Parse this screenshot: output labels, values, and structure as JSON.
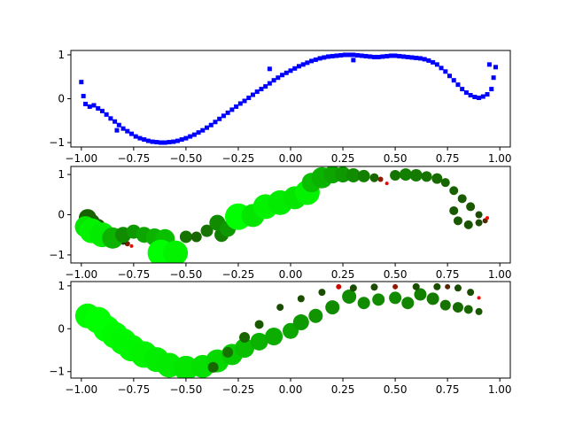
{
  "figure": {
    "background": "#ffffff"
  },
  "chart_data": [
    {
      "type": "scatter",
      "title": "",
      "xlabel": "",
      "ylabel": "",
      "xlim": [
        -1.05,
        1.05
      ],
      "ylim": [
        -1.1,
        1.1
      ],
      "xticks": [
        -1.0,
        -0.75,
        -0.5,
        -0.25,
        0.0,
        0.25,
        0.5,
        0.75,
        1.0
      ],
      "xtick_labels": [
        "−1.00",
        "−0.75",
        "−0.50",
        "−0.25",
        "0.00",
        "0.25",
        "0.50",
        "0.75",
        "1.00"
      ],
      "yticks": [
        -1,
        0,
        1
      ],
      "ytick_labels": [
        "−1",
        "0",
        "1"
      ],
      "marker": "square",
      "color": "#0000ff",
      "grid": false,
      "legend": "none",
      "series": [
        {
          "x": [
            -1.0,
            -0.99,
            -0.98,
            -0.96,
            -0.94,
            -0.92,
            -0.9,
            -0.88,
            -0.86,
            -0.84,
            -0.82,
            -0.8,
            -0.78,
            -0.76,
            -0.74,
            -0.72,
            -0.7,
            -0.68,
            -0.66,
            -0.64,
            -0.62,
            -0.6,
            -0.58,
            -0.56,
            -0.54,
            -0.52,
            -0.5,
            -0.48,
            -0.46,
            -0.44,
            -0.42,
            -0.4,
            -0.38,
            -0.36,
            -0.34,
            -0.32,
            -0.3,
            -0.28,
            -0.26,
            -0.24,
            -0.22,
            -0.2,
            -0.18,
            -0.16,
            -0.14,
            -0.12,
            -0.1,
            -0.08,
            -0.06,
            -0.04,
            -0.02,
            0.0,
            0.02,
            0.04,
            0.06,
            0.08,
            0.1,
            0.12,
            0.14,
            0.16,
            0.18,
            0.2,
            0.22,
            0.24,
            0.26,
            0.28,
            0.3,
            0.32,
            0.34,
            0.36,
            0.38,
            0.4,
            0.42,
            0.44,
            0.46,
            0.48,
            0.5,
            0.52,
            0.54,
            0.56,
            0.58,
            0.6,
            0.62,
            0.64,
            0.66,
            0.68,
            0.7,
            0.72,
            0.74,
            0.76,
            0.78,
            0.8,
            0.82,
            0.84,
            0.86,
            0.88,
            0.9,
            0.92,
            0.94,
            0.96,
            0.97,
            0.98,
            -0.83,
            -0.1,
            0.3,
            0.95
          ],
          "y": [
            0.38,
            0.06,
            -0.12,
            -0.18,
            -0.15,
            -0.22,
            -0.28,
            -0.36,
            -0.45,
            -0.52,
            -0.6,
            -0.68,
            -0.74,
            -0.8,
            -0.86,
            -0.9,
            -0.93,
            -0.96,
            -0.98,
            -0.99,
            -1.0,
            -1.0,
            -0.99,
            -0.98,
            -0.96,
            -0.93,
            -0.9,
            -0.86,
            -0.82,
            -0.77,
            -0.72,
            -0.66,
            -0.6,
            -0.53,
            -0.46,
            -0.39,
            -0.32,
            -0.25,
            -0.18,
            -0.11,
            -0.05,
            0.02,
            0.09,
            0.16,
            0.22,
            0.28,
            0.35,
            0.42,
            0.48,
            0.54,
            0.59,
            0.64,
            0.69,
            0.74,
            0.78,
            0.82,
            0.86,
            0.89,
            0.92,
            0.94,
            0.96,
            0.97,
            0.98,
            0.99,
            1.0,
            1.0,
            1.0,
            0.99,
            0.98,
            0.97,
            0.96,
            0.95,
            0.95,
            0.96,
            0.97,
            0.98,
            0.98,
            0.97,
            0.96,
            0.95,
            0.94,
            0.93,
            0.92,
            0.9,
            0.87,
            0.83,
            0.78,
            0.7,
            0.62,
            0.52,
            0.42,
            0.32,
            0.22,
            0.14,
            0.08,
            0.04,
            0.02,
            0.05,
            0.1,
            0.22,
            0.48,
            0.72,
            -0.72,
            0.68,
            0.88,
            0.78
          ]
        }
      ]
    },
    {
      "type": "scatter",
      "title": "",
      "xlabel": "",
      "ylabel": "",
      "xlim": [
        -1.05,
        1.05
      ],
      "ylim": [
        -1.2,
        1.2
      ],
      "xticks": [
        -1.0,
        -0.75,
        -0.5,
        -0.25,
        0.0,
        0.25,
        0.5,
        0.75,
        1.0
      ],
      "xtick_labels": [
        "−1.00",
        "−0.75",
        "−0.50",
        "−0.25",
        "0.00",
        "0.25",
        "0.50",
        "0.75",
        "1.00"
      ],
      "yticks": [
        -1,
        0,
        1
      ],
      "ytick_labels": [
        "−1",
        "0",
        "1"
      ],
      "marker": "circle",
      "color_scale": {
        "low": "#ff0000",
        "mid": "#1e3300",
        "high": "#00ff00"
      },
      "grid": false,
      "legend": "none",
      "series": [
        {
          "points": [
            {
              "x": -0.76,
              "y": -0.78,
              "s": 2,
              "c": 0.0
            },
            {
              "x": -0.78,
              "y": -0.72,
              "s": 3,
              "c": 0.12
            },
            {
              "x": -0.8,
              "y": -0.66,
              "s": 4,
              "c": 0.2
            },
            {
              "x": -0.83,
              "y": -0.58,
              "s": 5,
              "c": 0.28
            },
            {
              "x": -0.86,
              "y": -0.5,
              "s": 6,
              "c": 0.3
            },
            {
              "x": -0.89,
              "y": -0.4,
              "s": 7,
              "c": 0.32
            },
            {
              "x": -0.92,
              "y": -0.28,
              "s": 8,
              "c": 0.34
            },
            {
              "x": -0.95,
              "y": -0.18,
              "s": 9,
              "c": 0.36
            },
            {
              "x": -0.97,
              "y": -0.08,
              "s": 10,
              "c": 0.38
            },
            {
              "x": -0.98,
              "y": -0.3,
              "s": 12,
              "c": 0.9
            },
            {
              "x": -0.95,
              "y": -0.4,
              "s": 14,
              "c": 0.95
            },
            {
              "x": -0.9,
              "y": -0.5,
              "s": 14,
              "c": 0.92
            },
            {
              "x": -0.85,
              "y": -0.58,
              "s": 12,
              "c": 0.7
            },
            {
              "x": -0.8,
              "y": -0.5,
              "s": 9,
              "c": 0.55
            },
            {
              "x": -0.75,
              "y": -0.42,
              "s": 8,
              "c": 0.6
            },
            {
              "x": -0.7,
              "y": -0.5,
              "s": 9,
              "c": 0.65
            },
            {
              "x": -0.65,
              "y": -0.56,
              "s": 10,
              "c": 0.7
            },
            {
              "x": -0.6,
              "y": -0.6,
              "s": 11,
              "c": 0.75
            },
            {
              "x": -0.62,
              "y": -0.95,
              "s": 15,
              "c": 1.0
            },
            {
              "x": -0.55,
              "y": -0.95,
              "s": 14,
              "c": 0.95
            },
            {
              "x": -0.5,
              "y": -0.55,
              "s": 7,
              "c": 0.45
            },
            {
              "x": -0.45,
              "y": -0.55,
              "s": 6,
              "c": 0.4
            },
            {
              "x": -0.4,
              "y": -0.4,
              "s": 7,
              "c": 0.45
            },
            {
              "x": -0.33,
              "y": -0.5,
              "s": 8,
              "c": 0.5
            },
            {
              "x": -0.35,
              "y": -0.2,
              "s": 9,
              "c": 0.55
            },
            {
              "x": -0.3,
              "y": -0.35,
              "s": 9,
              "c": 0.6
            },
            {
              "x": -0.25,
              "y": -0.05,
              "s": 15,
              "c": 1.0
            },
            {
              "x": -0.18,
              "y": -0.02,
              "s": 13,
              "c": 0.9
            },
            {
              "x": -0.12,
              "y": 0.2,
              "s": 14,
              "c": 0.95
            },
            {
              "x": -0.05,
              "y": 0.3,
              "s": 14,
              "c": 0.92
            },
            {
              "x": 0.02,
              "y": 0.42,
              "s": 13,
              "c": 0.9
            },
            {
              "x": 0.08,
              "y": 0.55,
              "s": 14,
              "c": 0.95
            },
            {
              "x": 0.1,
              "y": 0.8,
              "s": 11,
              "c": 0.75
            },
            {
              "x": 0.15,
              "y": 0.92,
              "s": 12,
              "c": 0.7
            },
            {
              "x": 0.2,
              "y": 1.0,
              "s": 10,
              "c": 0.65
            },
            {
              "x": 0.25,
              "y": 1.0,
              "s": 9,
              "c": 0.6
            },
            {
              "x": 0.3,
              "y": 0.98,
              "s": 8,
              "c": 0.55
            },
            {
              "x": 0.35,
              "y": 0.96,
              "s": 7,
              "c": 0.5
            },
            {
              "x": 0.4,
              "y": 0.92,
              "s": 5,
              "c": 0.4
            },
            {
              "x": 0.43,
              "y": 0.88,
              "s": 3,
              "c": 0.1
            },
            {
              "x": 0.46,
              "y": 0.78,
              "s": 2,
              "c": 0.0
            },
            {
              "x": 0.5,
              "y": 0.98,
              "s": 6,
              "c": 0.45
            },
            {
              "x": 0.55,
              "y": 1.0,
              "s": 7,
              "c": 0.5
            },
            {
              "x": 0.6,
              "y": 0.98,
              "s": 7,
              "c": 0.48
            },
            {
              "x": 0.65,
              "y": 0.95,
              "s": 6,
              "c": 0.45
            },
            {
              "x": 0.7,
              "y": 0.9,
              "s": 6,
              "c": 0.42
            },
            {
              "x": 0.74,
              "y": 0.8,
              "s": 5,
              "c": 0.4
            },
            {
              "x": 0.78,
              "y": 0.6,
              "s": 5,
              "c": 0.38
            },
            {
              "x": 0.82,
              "y": 0.4,
              "s": 5,
              "c": 0.36
            },
            {
              "x": 0.86,
              "y": 0.2,
              "s": 5,
              "c": 0.35
            },
            {
              "x": 0.9,
              "y": 0.0,
              "s": 4,
              "c": 0.3
            },
            {
              "x": 0.93,
              "y": -0.15,
              "s": 3,
              "c": 0.15
            },
            {
              "x": 0.94,
              "y": -0.08,
              "s": 2,
              "c": 0.0
            },
            {
              "x": 0.9,
              "y": -0.2,
              "s": 4,
              "c": 0.3
            },
            {
              "x": 0.85,
              "y": -0.25,
              "s": 5,
              "c": 0.33
            },
            {
              "x": 0.8,
              "y": -0.15,
              "s": 5,
              "c": 0.35
            },
            {
              "x": 0.78,
              "y": 0.1,
              "s": 5,
              "c": 0.35
            }
          ]
        }
      ]
    },
    {
      "type": "scatter",
      "title": "",
      "xlabel": "",
      "ylabel": "",
      "xlim": [
        -1.05,
        1.05
      ],
      "ylim": [
        -1.15,
        1.1
      ],
      "xticks": [
        -1.0,
        -0.75,
        -0.5,
        -0.25,
        0.0,
        0.25,
        0.5,
        0.75,
        1.0
      ],
      "xtick_labels": [
        "−1.00",
        "−0.75",
        "−0.50",
        "−0.25",
        "0.00",
        "0.25",
        "0.50",
        "0.75",
        "1.00"
      ],
      "yticks": [
        -1,
        0,
        1
      ],
      "ytick_labels": [
        "−1",
        "0",
        "1"
      ],
      "marker": "circle",
      "color_scale": {
        "low": "#ff0000",
        "mid": "#1e3300",
        "high": "#00ff00"
      },
      "grid": false,
      "legend": "none",
      "series": [
        {
          "points": [
            {
              "x": -0.97,
              "y": 0.3,
              "s": 14,
              "c": 0.98
            },
            {
              "x": -0.92,
              "y": 0.2,
              "s": 15,
              "c": 1.0
            },
            {
              "x": -0.88,
              "y": 0.0,
              "s": 15,
              "c": 1.0
            },
            {
              "x": -0.84,
              "y": -0.15,
              "s": 15,
              "c": 0.98
            },
            {
              "x": -0.8,
              "y": -0.3,
              "s": 15,
              "c": 0.97
            },
            {
              "x": -0.76,
              "y": -0.45,
              "s": 15,
              "c": 0.96
            },
            {
              "x": -0.7,
              "y": -0.6,
              "s": 15,
              "c": 0.95
            },
            {
              "x": -0.64,
              "y": -0.72,
              "s": 14,
              "c": 0.93
            },
            {
              "x": -0.58,
              "y": -0.85,
              "s": 14,
              "c": 0.92
            },
            {
              "x": -0.5,
              "y": -0.92,
              "s": 14,
              "c": 0.9
            },
            {
              "x": -0.42,
              "y": -0.88,
              "s": 13,
              "c": 0.88
            },
            {
              "x": -0.35,
              "y": -0.75,
              "s": 13,
              "c": 0.85
            },
            {
              "x": -0.28,
              "y": -0.6,
              "s": 12,
              "c": 0.8
            },
            {
              "x": -0.22,
              "y": -0.45,
              "s": 11,
              "c": 0.75
            },
            {
              "x": -0.15,
              "y": -0.3,
              "s": 10,
              "c": 0.7
            },
            {
              "x": -0.08,
              "y": -0.18,
              "s": 10,
              "c": 0.68
            },
            {
              "x": 0.0,
              "y": -0.05,
              "s": 9,
              "c": 0.65
            },
            {
              "x": 0.05,
              "y": 0.15,
              "s": 9,
              "c": 0.6
            },
            {
              "x": 0.12,
              "y": 0.3,
              "s": 8,
              "c": 0.58
            },
            {
              "x": 0.2,
              "y": 0.5,
              "s": 8,
              "c": 0.55
            },
            {
              "x": 0.28,
              "y": 0.75,
              "s": 8,
              "c": 0.55
            },
            {
              "x": 0.35,
              "y": 0.6,
              "s": 7,
              "c": 0.55
            },
            {
              "x": 0.42,
              "y": 0.68,
              "s": 7,
              "c": 0.55
            },
            {
              "x": 0.5,
              "y": 0.72,
              "s": 7,
              "c": 0.55
            },
            {
              "x": 0.56,
              "y": 0.6,
              "s": 7,
              "c": 0.52
            },
            {
              "x": 0.62,
              "y": 0.8,
              "s": 7,
              "c": 0.5
            },
            {
              "x": 0.68,
              "y": 0.7,
              "s": 7,
              "c": 0.48
            },
            {
              "x": 0.74,
              "y": 0.55,
              "s": 6,
              "c": 0.45
            },
            {
              "x": 0.8,
              "y": 0.5,
              "s": 6,
              "c": 0.42
            },
            {
              "x": 0.85,
              "y": 0.45,
              "s": 5,
              "c": 0.4
            },
            {
              "x": 0.9,
              "y": 0.4,
              "s": 4,
              "c": 0.35
            },
            {
              "x": 0.9,
              "y": 0.72,
              "s": 2,
              "c": 0.0
            },
            {
              "x": 0.86,
              "y": 0.85,
              "s": 4,
              "c": 0.3
            },
            {
              "x": 0.8,
              "y": 0.95,
              "s": 4,
              "c": 0.3
            },
            {
              "x": 0.75,
              "y": 0.98,
              "s": 3,
              "c": 0.15
            },
            {
              "x": 0.7,
              "y": 0.98,
              "s": 4,
              "c": 0.3
            },
            {
              "x": 0.6,
              "y": 0.98,
              "s": 4,
              "c": 0.3
            },
            {
              "x": 0.5,
              "y": 0.98,
              "s": 3,
              "c": 0.1
            },
            {
              "x": 0.4,
              "y": 0.97,
              "s": 4,
              "c": 0.3
            },
            {
              "x": 0.3,
              "y": 0.95,
              "s": 4,
              "c": 0.3
            },
            {
              "x": 0.23,
              "y": 0.98,
              "s": 3,
              "c": 0.05
            },
            {
              "x": 0.15,
              "y": 0.85,
              "s": 4,
              "c": 0.3
            },
            {
              "x": 0.05,
              "y": 0.7,
              "s": 4,
              "c": 0.3
            },
            {
              "x": -0.05,
              "y": 0.5,
              "s": 4,
              "c": 0.3
            },
            {
              "x": -0.15,
              "y": 0.1,
              "s": 5,
              "c": 0.35
            },
            {
              "x": -0.22,
              "y": -0.2,
              "s": 6,
              "c": 0.4
            },
            {
              "x": -0.3,
              "y": -0.55,
              "s": 6,
              "c": 0.45
            },
            {
              "x": -0.37,
              "y": -0.9,
              "s": 6,
              "c": 0.4
            }
          ]
        }
      ]
    }
  ]
}
